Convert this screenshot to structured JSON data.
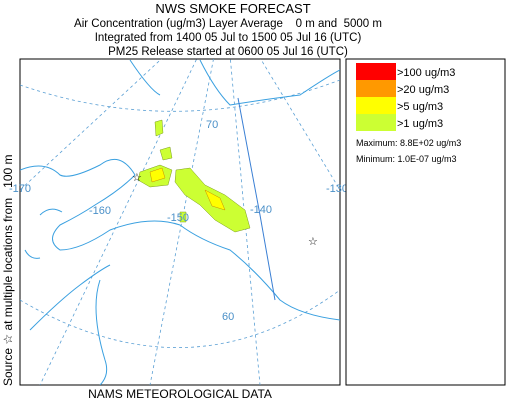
{
  "header": {
    "title": "NWS SMOKE FORECAST",
    "lines": [
      "Air Concentration (ug/m3) Layer Average    0 m and  5000 m",
      "Integrated from 1400 05 Jul to 1500 05 Jul 16 (UTC)",
      "PM25 Release started at 0600 05 Jul 16 (UTC)"
    ]
  },
  "source_label": "Source ☆ at multiple locations from   100 m",
  "map": {
    "graticule_labels": [
      "70",
      "-170",
      "-160",
      "-150",
      "-140",
      "-130",
      "60"
    ]
  },
  "legend": {
    "items": [
      {
        "label": ">100 ug/m3",
        "color": "#ff0000"
      },
      {
        "label": ">20 ug/m3",
        "color": "#ff9900"
      },
      {
        "label": ">5 ug/m3",
        "color": "#ffff00"
      },
      {
        "label": ">1 ug/m3",
        "color": "#ccff33"
      }
    ],
    "maximum": "Maximum: 8.8E+02 ug/m3",
    "minimum": "Minimum: 1.0E-07 ug/m3"
  },
  "footer": "NAMS METEOROLOGICAL DATA"
}
